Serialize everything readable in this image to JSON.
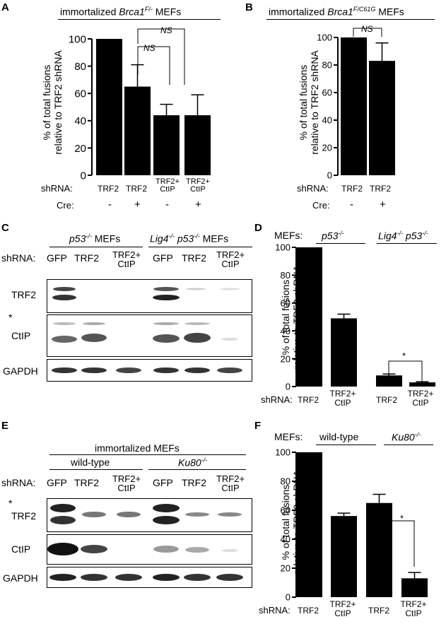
{
  "panels": {
    "A": {
      "letter": "A",
      "title_prefix": "immortalized ",
      "title_gene": "Brca1",
      "title_sup": "F/-",
      "title_suffix": " MEFs",
      "ylabel_1": "% of total fusions",
      "ylabel_2": "relative to TRF2 shRNA",
      "shrna_label": "shRNA:",
      "cre_label": "Cre:",
      "bars": [
        {
          "shrna": "TRF2",
          "shrna2": "",
          "cre": "-"
        },
        {
          "shrna": "TRF2",
          "shrna2": "",
          "cre": "+"
        },
        {
          "shrna": "TRF2+",
          "shrna2": "CtIP",
          "cre": "-"
        },
        {
          "shrna": "TRF2+",
          "shrna2": "CtIP",
          "cre": "+"
        }
      ],
      "sig_1": "NS",
      "sig_2": "NS"
    },
    "B": {
      "letter": "B",
      "title_prefix": "immortalized ",
      "title_gene": "Brca1",
      "title_sup": "F/C61G",
      "title_suffix": " MEFs",
      "ylabel_1": "% of total fusions",
      "ylabel_2": "relative to TRF2 shRNA",
      "shrna_label": "shRNA:",
      "cre_label": "Cre:",
      "bars": [
        {
          "shrna": "TRF2",
          "cre": "-"
        },
        {
          "shrna": "TRF2",
          "cre": "+"
        }
      ],
      "sig_1": "NS"
    },
    "C": {
      "letter": "C",
      "group1_gene": "p53",
      "group1_sup": "-/-",
      "group1_suffix": " MEFs",
      "group2_gene1": "Lig4",
      "group2_sup1": "-/-",
      "group2_gene2": " p53",
      "group2_sup2": "-/-",
      "group2_suffix": " MEFs",
      "shrna_label": "shRNA:",
      "lanes": [
        "GFP",
        "TRF2",
        "TRF2+",
        "GFP",
        "TRF2",
        "TRF2+"
      ],
      "lanes2": [
        "",
        "",
        "CtIP",
        "",
        "",
        "CtIP"
      ],
      "blot_labels": [
        "TRF2",
        "CtIP",
        "GAPDH"
      ],
      "star": "*"
    },
    "D": {
      "letter": "D",
      "mefs_label": "MEFs:",
      "group1_gene": "p53",
      "group1_sup": "-/-",
      "group2_gene1": "Lig4",
      "group2_sup1": "-/-",
      "group2_gene2": " p53",
      "group2_sup2": "-/-",
      "ylabel_1": "% of total fusions",
      "ylabel_2": "relative to TRF2 shRNA",
      "shrna_label": "shRNA:",
      "xlabels": [
        "TRF2",
        "TRF2+",
        "TRF2",
        "TRF2+"
      ],
      "xlabels2": [
        "",
        "CtIP",
        "",
        "CtIP"
      ],
      "sig": "*"
    },
    "E": {
      "letter": "E",
      "header": "immortalized MEFs",
      "group1": "wild-type",
      "group2_gene": "Ku80",
      "group2_sup": "-/-",
      "shrna_label": "shRNA:",
      "lanes": [
        "GFP",
        "TRF2",
        "TRF2+",
        "GFP",
        "TRF2",
        "TRF2+"
      ],
      "lanes2": [
        "",
        "",
        "CtIP",
        "",
        "",
        "CtIP"
      ],
      "blot_labels": [
        "TRF2",
        "CtIP",
        "GAPDH"
      ],
      "star": "*"
    },
    "F": {
      "letter": "F",
      "mefs_label": "MEFs:",
      "group1": "wild-type",
      "group2_gene": "Ku80",
      "group2_sup": "-/-",
      "ylabel_1": "% of total fusions",
      "ylabel_2": "relative to TRF2 shRNA",
      "shrna_label": "shRNA:",
      "xlabels": [
        "TRF2",
        "TRF2+",
        "TRF2",
        "TRF2+"
      ],
      "xlabels2": [
        "",
        "CtIP",
        "",
        "CtIP"
      ],
      "sig": "*"
    }
  },
  "chart_data": [
    {
      "panel": "A",
      "type": "bar",
      "categories": [
        "TRF2 / Cre -",
        "TRF2 / Cre +",
        "TRF2+CtIP / Cre -",
        "TRF2+CtIP / Cre +"
      ],
      "values": [
        100,
        65,
        44,
        44
      ],
      "errors": [
        0,
        16,
        8,
        15
      ],
      "ylim": [
        0,
        100
      ],
      "yticks": [
        0,
        20,
        40,
        60,
        80,
        100
      ],
      "ylabel": "% of total fusions relative to TRF2 shRNA"
    },
    {
      "panel": "B",
      "type": "bar",
      "categories": [
        "TRF2 / Cre -",
        "TRF2 / Cre +"
      ],
      "values": [
        100,
        83
      ],
      "errors": [
        0,
        13
      ],
      "ylim": [
        0,
        100
      ],
      "yticks": [
        0,
        20,
        40,
        60,
        80,
        100
      ],
      "ylabel": "% of total fusions relative to TRF2 shRNA"
    },
    {
      "panel": "D",
      "type": "bar",
      "categories": [
        "p53-/- TRF2",
        "p53-/- TRF2+CtIP",
        "Lig4-/- p53-/- TRF2",
        "Lig4-/- p53-/- TRF2+CtIP"
      ],
      "values": [
        100,
        49,
        8,
        3
      ],
      "errors": [
        0,
        3,
        1,
        0.5
      ],
      "ylim": [
        0,
        100
      ],
      "yticks": [
        0,
        20,
        40,
        60,
        80,
        100
      ],
      "ylabel": "% of total fusions relative to TRF2 shRNA"
    },
    {
      "panel": "F",
      "type": "bar",
      "categories": [
        "wild-type TRF2",
        "wild-type TRF2+CtIP",
        "Ku80-/- TRF2",
        "Ku80-/- TRF2+CtIP"
      ],
      "values": [
        100,
        56,
        65,
        13
      ],
      "errors": [
        0,
        2,
        6,
        4
      ],
      "ylim": [
        0,
        100
      ],
      "yticks": [
        0,
        20,
        40,
        60,
        80,
        100
      ],
      "ylabel": "% of total fusions relative to TRF2 shRNA"
    }
  ]
}
